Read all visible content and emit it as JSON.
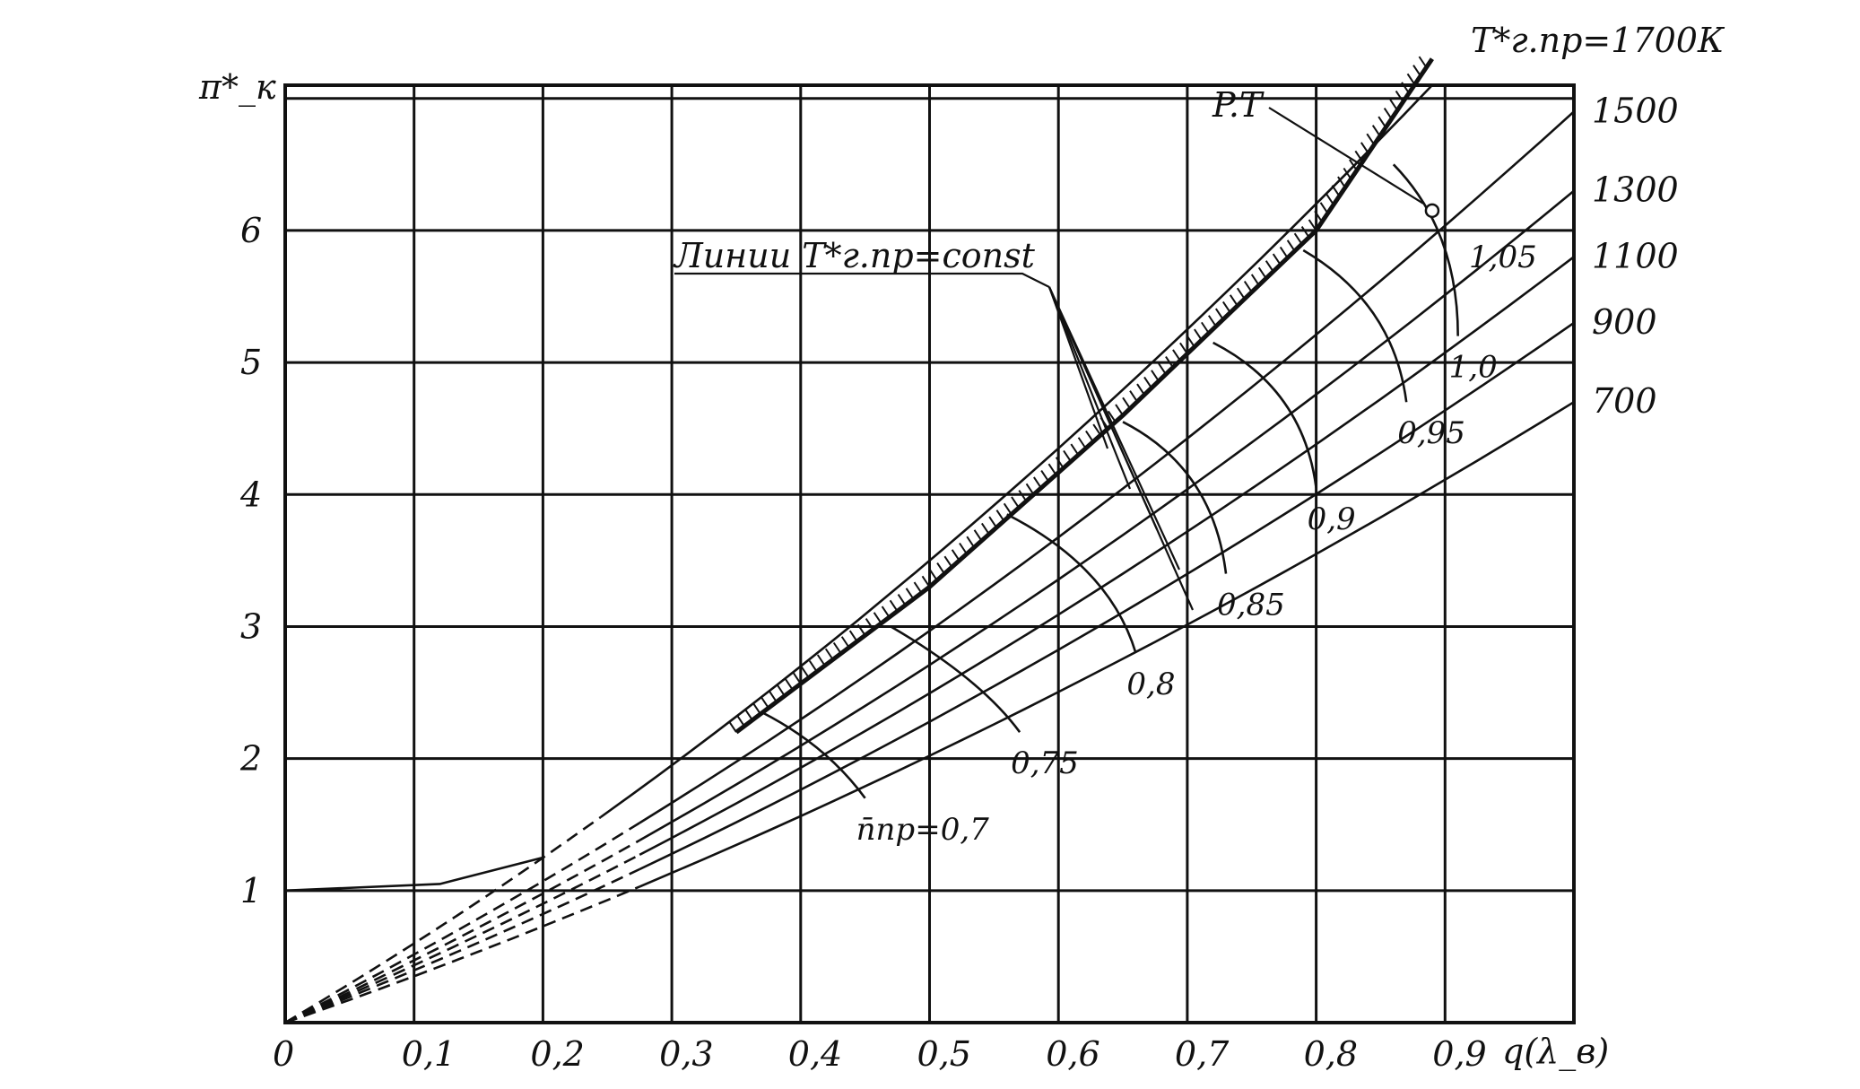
{
  "chart_data": {
    "type": "line",
    "title": "",
    "xlabel": "q(λ_в)",
    "ylabel": "π*_к",
    "xlim": [
      0,
      1.0
    ],
    "ylim": [
      0,
      7.1
    ],
    "grid": true,
    "x_ticks": [
      {
        "v": 0,
        "label": "0"
      },
      {
        "v": 0.1,
        "label": "0,1"
      },
      {
        "v": 0.2,
        "label": "0,2"
      },
      {
        "v": 0.3,
        "label": "0,3"
      },
      {
        "v": 0.4,
        "label": "0,4"
      },
      {
        "v": 0.5,
        "label": "0,5"
      },
      {
        "v": 0.6,
        "label": "0,6"
      },
      {
        "v": 0.7,
        "label": "0,7"
      },
      {
        "v": 0.8,
        "label": "0,8"
      },
      {
        "v": 0.9,
        "label": "0,9"
      }
    ],
    "y_ticks": [
      {
        "v": 1,
        "label": "1"
      },
      {
        "v": 2,
        "label": "2"
      },
      {
        "v": 3,
        "label": "3"
      },
      {
        "v": 4,
        "label": "4"
      },
      {
        "v": 5,
        "label": "5"
      },
      {
        "v": 6,
        "label": "6"
      }
    ],
    "temperature_lines": {
      "header": "T*г.пр=1700К",
      "series": [
        {
          "label": "",
          "q_end": 0.89,
          "pi_end": 7.1
        },
        {
          "label": "1500",
          "q_end": 1.0,
          "pi_end": 6.9
        },
        {
          "label": "1300",
          "q_end": 1.0,
          "pi_end": 6.3
        },
        {
          "label": "1100",
          "q_end": 1.0,
          "pi_end": 5.8
        },
        {
          "label": "900",
          "q_end": 1.0,
          "pi_end": 5.3
        },
        {
          "label": "700",
          "q_end": 1.0,
          "pi_end": 4.7
        }
      ]
    },
    "speed_lines": [
      {
        "label": "n̄пр=0,7",
        "points": [
          [
            0.37,
            2.35
          ],
          [
            0.42,
            2.1
          ],
          [
            0.45,
            1.7
          ]
        ]
      },
      {
        "label": "0,75",
        "points": [
          [
            0.47,
            3.0
          ],
          [
            0.54,
            2.6
          ],
          [
            0.57,
            2.2
          ]
        ]
      },
      {
        "label": "0,8",
        "points": [
          [
            0.56,
            3.85
          ],
          [
            0.64,
            3.45
          ],
          [
            0.66,
            2.8
          ]
        ]
      },
      {
        "label": "0,85",
        "points": [
          [
            0.65,
            4.55
          ],
          [
            0.72,
            4.2
          ],
          [
            0.73,
            3.4
          ]
        ]
      },
      {
        "label": "0,9",
        "points": [
          [
            0.72,
            5.15
          ],
          [
            0.79,
            4.8
          ],
          [
            0.8,
            4.05
          ]
        ]
      },
      {
        "label": "0,95",
        "points": [
          [
            0.79,
            5.85
          ],
          [
            0.86,
            5.45
          ],
          [
            0.87,
            4.7
          ]
        ]
      },
      {
        "label": "1,0",
        "points": [
          [
            0.86,
            6.5
          ],
          [
            0.91,
            6.0
          ],
          [
            0.91,
            5.2
          ]
        ]
      }
    ],
    "surge_line": {
      "points": [
        [
          0.35,
          2.2
        ],
        [
          0.5,
          3.3
        ],
        [
          0.65,
          4.6
        ],
        [
          0.8,
          6.0
        ],
        [
          0.89,
          7.3
        ]
      ]
    },
    "annotations": {
      "lines_label": "Линии T*г.пр=const",
      "design_point": "P.T",
      "speed_1_05": "1,05",
      "design_point_value": {
        "q": 0.89,
        "pi": 6.15
      }
    }
  }
}
